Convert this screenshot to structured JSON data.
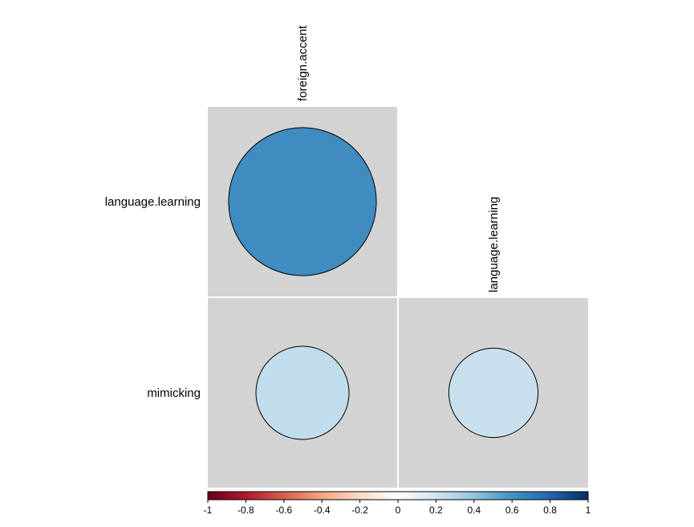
{
  "chart_data": {
    "type": "heatmap",
    "subtype": "correlation-circle-lower-triangle",
    "variables": [
      "foreign.accent",
      "language.learning",
      "mimicking"
    ],
    "row_labels": [
      "language.learning",
      "mimicking"
    ],
    "col_labels": [
      "foreign.accent",
      "language.learning"
    ],
    "cells": [
      {
        "row": "language.learning",
        "col": "foreign.accent",
        "value": 0.63
      },
      {
        "row": "mimicking",
        "col": "foreign.accent",
        "value": 0.25
      },
      {
        "row": "mimicking",
        "col": "language.learning",
        "value": 0.23
      }
    ],
    "colorbar": {
      "min": -1,
      "max": 1,
      "tick_values": [
        -1,
        -0.8,
        -0.6,
        -0.4,
        -0.2,
        0,
        0.2,
        0.4,
        0.6,
        0.8,
        1
      ],
      "tick_labels": [
        "-1",
        "-0.8",
        "-0.6",
        "-0.4",
        "-0.2",
        "0",
        "0.2",
        "0.4",
        "0.6",
        "0.8",
        "1"
      ],
      "palette": [
        "#67001f",
        "#b2182b",
        "#d6604d",
        "#f4a582",
        "#fddbc7",
        "#ffffff",
        "#d1e5f0",
        "#92c5de",
        "#4393c3",
        "#2166ac",
        "#053061"
      ]
    },
    "cell_background": "#d3d3d3",
    "legend_position": "bottom",
    "grid": true
  }
}
